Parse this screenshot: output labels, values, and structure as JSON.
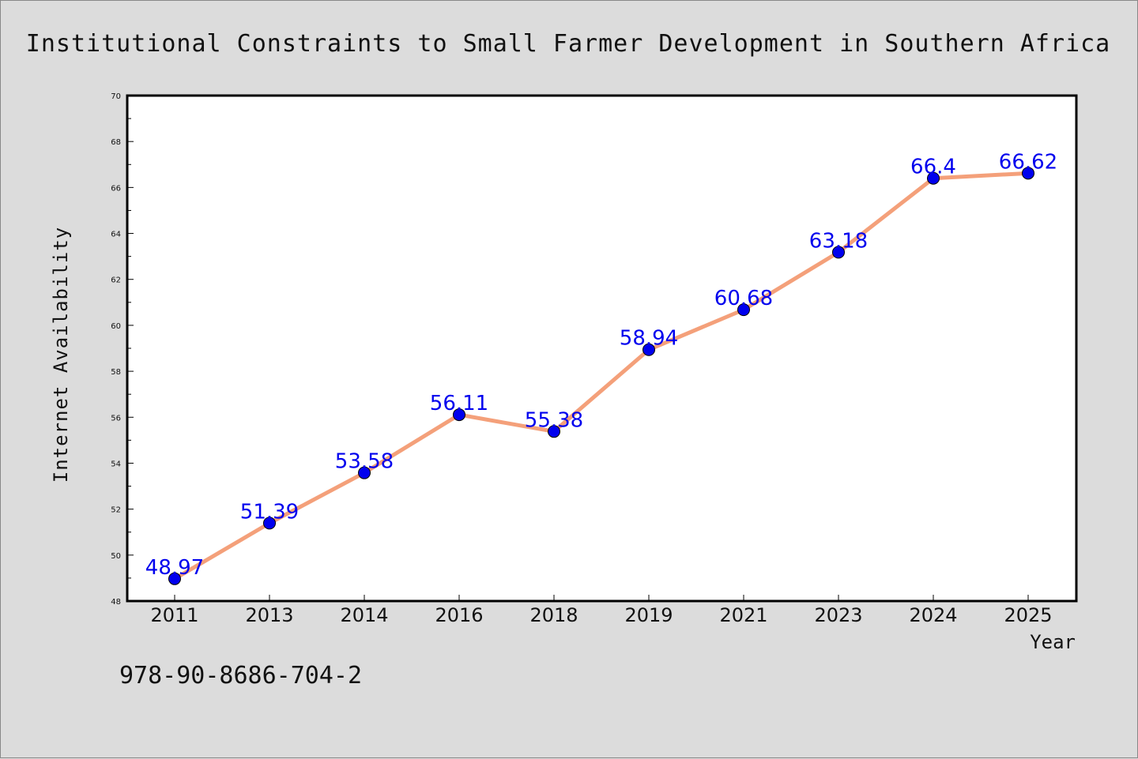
{
  "footnote": "978-90-8686-704-2",
  "chart_data": {
    "type": "line",
    "title": "Institutional Constraints to Small Farmer Development in Southern Africa",
    "xlabel": "Year",
    "ylabel": "Internet Availability",
    "categories": [
      "2011",
      "2013",
      "2014",
      "2016",
      "2018",
      "2019",
      "2021",
      "2023",
      "2024",
      "2025"
    ],
    "series": [
      {
        "values": [
          48.97,
          51.39,
          53.58,
          56.11,
          55.38,
          58.94,
          60.68,
          63.18,
          66.4,
          66.62
        ],
        "labels": [
          "48.97",
          "51.39",
          "53.58",
          "56.11",
          "55.38",
          "58.94",
          "60.68",
          "63.18",
          "66.4",
          "66.62"
        ]
      }
    ],
    "ylim": [
      48,
      70
    ],
    "yticks": [
      "48",
      "50",
      "52",
      "54",
      "56",
      "58",
      "60",
      "62",
      "64",
      "66",
      "68",
      "70"
    ],
    "grid": false,
    "legend": "none",
    "colors": {
      "line": "#f4a07a",
      "marker": "#0000ee",
      "data_label": "#0000ee",
      "background": "#dcdcdc",
      "plot_background": "#ffffff"
    }
  }
}
